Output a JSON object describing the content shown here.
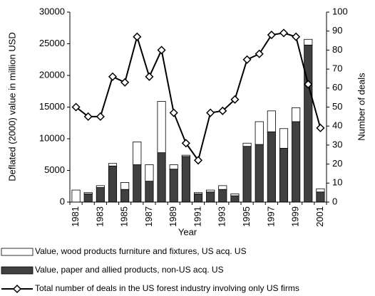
{
  "chart_data": {
    "type": "bar",
    "x_label": "Year",
    "y_label": "Deflated (2000) value in million USD",
    "y2_label": "Number of deals",
    "categories": [
      "1981",
      null,
      "1983",
      null,
      "1985",
      null,
      "1987",
      null,
      "1989",
      null,
      "1991",
      null,
      "1993",
      null,
      "1995",
      null,
      "1997",
      null,
      "1999",
      null,
      "2001"
    ],
    "stacked": true,
    "series": [
      {
        "name": "Value, wood products furniture and fixtures, US acq. US",
        "type": "bar",
        "color": "#ffffff",
        "values": [
          1900,
          200,
          300,
          400,
          1100,
          3600,
          2600,
          8100,
          700,
          200,
          200,
          300,
          600,
          300,
          500,
          3600,
          3300,
          3100,
          2200,
          900,
          500
        ]
      },
      {
        "name": "Value, paper and allied products, non-US acq. US",
        "type": "bar",
        "color": "#404040",
        "values": [
          0,
          1300,
          2300,
          5700,
          2000,
          5900,
          3300,
          7800,
          5200,
          7200,
          1300,
          1600,
          2000,
          1000,
          8800,
          9100,
          11100,
          8500,
          12700,
          24800,
          1600
        ]
      },
      {
        "name": "Total number of deals in the US forest industry involving only US firms",
        "type": "line",
        "axis": "y2",
        "color": "#000000",
        "values": [
          50,
          45,
          45,
          66,
          63,
          87,
          66,
          80,
          47,
          31,
          22,
          47,
          48,
          54,
          75,
          78,
          88,
          89,
          87,
          62,
          39
        ]
      }
    ],
    "ylim": [
      0,
      30000
    ],
    "yticks": [
      0,
      5000,
      10000,
      15000,
      20000,
      25000,
      30000
    ],
    "y2lim": [
      0,
      100
    ],
    "y2ticks": [
      0,
      10,
      20,
      30,
      40,
      50,
      60,
      70,
      80,
      90,
      100
    ]
  }
}
